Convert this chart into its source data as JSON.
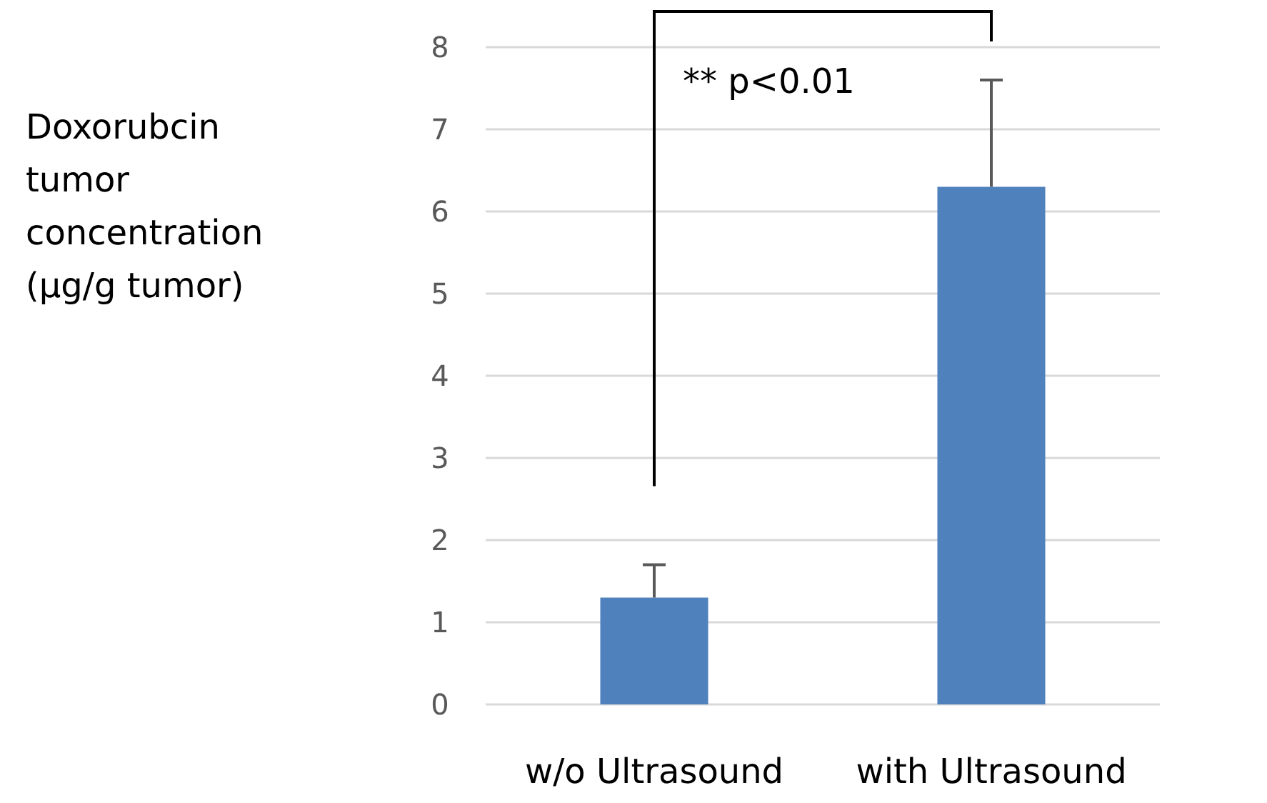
{
  "chart_data": {
    "type": "bar",
    "ylabel": "Doxorubcin tumor concentration (μg/g tumor)",
    "categories": [
      "w/o Ultrasound",
      "with Ultrasound"
    ],
    "values": [
      1.3,
      6.3
    ],
    "errors": [
      [
        1.3,
        1.7
      ],
      [
        6.3,
        7.6
      ]
    ],
    "color": "#4f81bd",
    "ylim": [
      0,
      8
    ],
    "yticks": [
      0,
      1,
      2,
      3,
      4,
      5,
      6,
      7,
      8
    ],
    "grid": "y",
    "annotations": [
      "** p<0.01"
    ]
  }
}
